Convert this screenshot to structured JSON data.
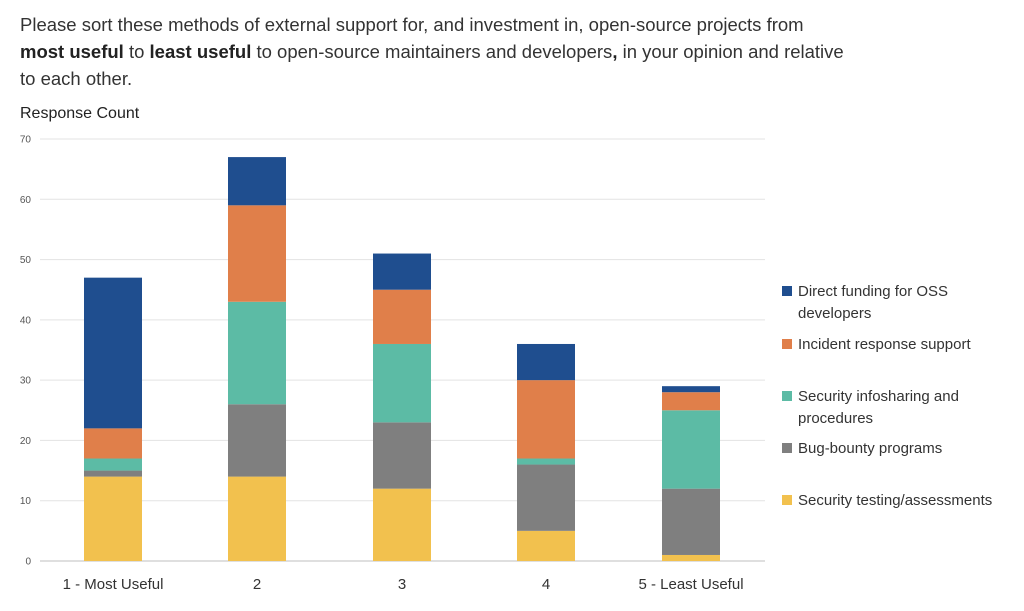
{
  "question": {
    "p1": "Please sort these methods of external support for, and investment in, open-source projects from ",
    "b1": "most useful",
    "p2": " to ",
    "b2": "least useful",
    "p3": " to open-source maintainers and developers",
    "b3": ",",
    "p4": " in your opinion and relative to each other."
  },
  "chart_data": {
    "type": "bar",
    "stacked": true,
    "ylabel": "Response Count",
    "xlabel": "",
    "ylim": [
      0,
      70
    ],
    "yticks": [
      0,
      10,
      20,
      30,
      40,
      50,
      60,
      70
    ],
    "grid": true,
    "legend_position": "right",
    "categories": [
      "1 - Most Useful",
      "2",
      "3",
      "4",
      "5 - Least Useful"
    ],
    "series": [
      {
        "name": "Security testing/assessments",
        "color": "#F2C14E",
        "values": [
          14,
          14,
          12,
          5,
          1
        ]
      },
      {
        "name": "Bug-bounty programs",
        "color": "#7F7F7F",
        "values": [
          1,
          12,
          11,
          11,
          11
        ]
      },
      {
        "name": "Security infosharing and procedures",
        "color": "#5CBBA5",
        "values": [
          2,
          17,
          13,
          1,
          13
        ]
      },
      {
        "name": "Incident response support",
        "color": "#E07F4A",
        "values": [
          5,
          16,
          9,
          13,
          3
        ]
      },
      {
        "name": "Direct funding for OSS developers",
        "color": "#1F4E8F",
        "values": [
          25,
          8,
          6,
          6,
          1
        ]
      }
    ],
    "legend_order": [
      {
        "lines": [
          "Direct funding for OSS",
          "developers"
        ],
        "series": 4
      },
      {
        "lines": [
          "Incident response support"
        ],
        "series": 3
      },
      {
        "lines": [
          "Security infosharing and",
          "procedures"
        ],
        "series": 2
      },
      {
        "lines": [
          "Bug-bounty programs"
        ],
        "series": 1
      },
      {
        "lines": [
          "Security testing/assessments"
        ],
        "series": 0
      }
    ]
  }
}
